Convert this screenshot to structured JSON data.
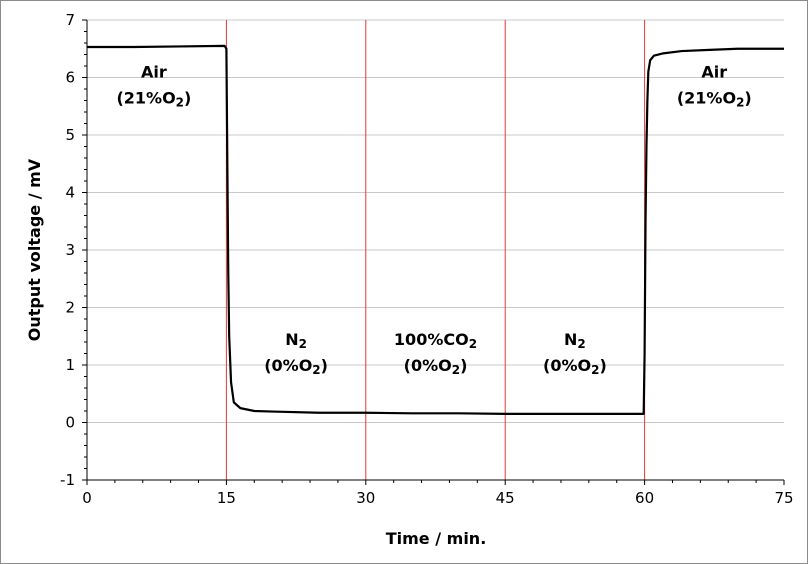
{
  "chart_data": {
    "type": "line",
    "title": "",
    "xlabel": "Time / min.",
    "ylabel": "Output voltage  / mV",
    "xlim": [
      0,
      75
    ],
    "ylim": [
      -1,
      7
    ],
    "x_ticks": [
      0,
      15,
      30,
      45,
      60,
      75
    ],
    "y_ticks": [
      -1,
      0,
      1,
      2,
      3,
      4,
      5,
      6,
      7
    ],
    "grid": {
      "horizontal": true,
      "vertical": false
    },
    "legend": "none",
    "colors": {
      "series": "#000000",
      "markers": "#e53935",
      "grid": "#c8c8c8"
    },
    "series": [
      {
        "x": [
          0,
          5,
          10,
          14.8,
          15.0,
          15.1,
          15.2,
          15.3,
          15.5,
          15.8,
          16.5,
          18,
          20,
          25,
          30,
          35,
          40,
          45,
          50,
          55,
          59.9,
          60.0,
          60.1,
          60.2,
          60.3,
          60.4,
          60.6,
          61,
          62,
          64,
          67,
          70,
          75
        ],
        "y": [
          6.53,
          6.53,
          6.54,
          6.55,
          6.5,
          4.5,
          2.6,
          1.5,
          0.7,
          0.35,
          0.25,
          0.2,
          0.19,
          0.17,
          0.17,
          0.16,
          0.16,
          0.15,
          0.15,
          0.15,
          0.15,
          1.2,
          3.5,
          4.8,
          5.6,
          6.1,
          6.3,
          6.38,
          6.42,
          6.46,
          6.48,
          6.5,
          6.5
        ]
      }
    ],
    "event_lines": [
      15,
      30,
      45,
      60
    ],
    "annotations": [
      {
        "x": 7.2,
        "y": 6.0,
        "lines": [
          [
            {
              "t": "Air"
            }
          ],
          [
            {
              "t": "(21%O"
            },
            {
              "t": "2",
              "sub": true
            },
            {
              "t": ")"
            }
          ]
        ]
      },
      {
        "x": 22.5,
        "y": 1.35,
        "lines": [
          [
            {
              "t": "N"
            },
            {
              "t": "2",
              "sub": true
            }
          ],
          [
            {
              "t": "(0%O"
            },
            {
              "t": "2",
              "sub": true
            },
            {
              "t": ")"
            }
          ]
        ]
      },
      {
        "x": 37.5,
        "y": 1.35,
        "lines": [
          [
            {
              "t": "100%CO"
            },
            {
              "t": "2",
              "sub": true
            }
          ],
          [
            {
              "t": "(0%O"
            },
            {
              "t": "2",
              "sub": true
            },
            {
              "t": ")"
            }
          ]
        ]
      },
      {
        "x": 52.5,
        "y": 1.35,
        "lines": [
          [
            {
              "t": "N"
            },
            {
              "t": "2",
              "sub": true
            }
          ],
          [
            {
              "t": "(0%O"
            },
            {
              "t": "2",
              "sub": true
            },
            {
              "t": ")"
            }
          ]
        ]
      },
      {
        "x": 67.5,
        "y": 6.0,
        "lines": [
          [
            {
              "t": "Air"
            }
          ],
          [
            {
              "t": "(21%O"
            },
            {
              "t": "2",
              "sub": true
            },
            {
              "t": ")"
            }
          ]
        ]
      }
    ]
  }
}
